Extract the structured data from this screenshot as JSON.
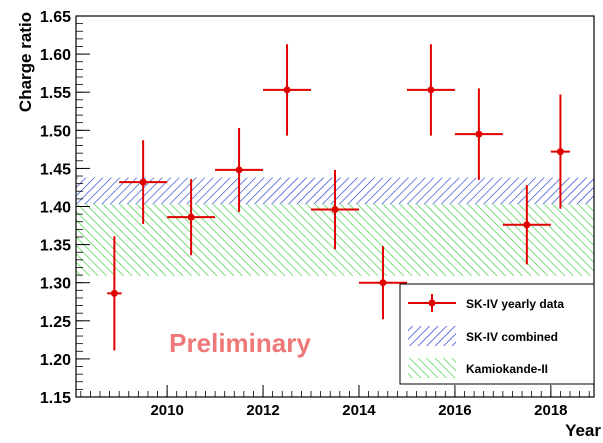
{
  "chart_data": {
    "type": "scatter",
    "title": "",
    "xlabel": "Year",
    "ylabel": "Charge ratio",
    "xlim": [
      2008.1,
      2018.9
    ],
    "ylim": [
      1.15,
      1.65
    ],
    "x_ticks": [
      2010,
      2012,
      2014,
      2016,
      2018
    ],
    "x_tick_labels": [
      "2010",
      "2012",
      "2014",
      "2016",
      "2018"
    ],
    "y_ticks": [
      1.15,
      1.2,
      1.25,
      1.3,
      1.35,
      1.4,
      1.45,
      1.5,
      1.55,
      1.6,
      1.65
    ],
    "y_tick_labels": [
      "1.15",
      "1.20",
      "1.25",
      "1.30",
      "1.35",
      "1.40",
      "1.45",
      "1.50",
      "1.55",
      "1.60",
      "1.65"
    ],
    "grid": false,
    "legend_position": "bottom-right",
    "annotation": "Preliminary",
    "series": [
      {
        "name": "SK-IV yearly data",
        "kind": "points_with_errors",
        "color": "#e00000",
        "points": [
          {
            "x": 2008.9,
            "y": 1.286,
            "xerr": 0.15,
            "yerr": 0.075
          },
          {
            "x": 2009.5,
            "y": 1.432,
            "xerr": 0.5,
            "yerr": 0.055
          },
          {
            "x": 2010.5,
            "y": 1.386,
            "xerr": 0.5,
            "yerr": 0.05
          },
          {
            "x": 2011.5,
            "y": 1.448,
            "xerr": 0.5,
            "yerr": 0.055
          },
          {
            "x": 2012.5,
            "y": 1.553,
            "xerr": 0.5,
            "yerr": 0.06
          },
          {
            "x": 2013.5,
            "y": 1.396,
            "xerr": 0.5,
            "yerr": 0.052
          },
          {
            "x": 2014.5,
            "y": 1.3,
            "xerr": 0.5,
            "yerr": 0.048
          },
          {
            "x": 2015.5,
            "y": 1.553,
            "xerr": 0.5,
            "yerr": 0.06
          },
          {
            "x": 2016.5,
            "y": 1.495,
            "xerr": 0.5,
            "yerr": 0.06
          },
          {
            "x": 2017.5,
            "y": 1.376,
            "xerr": 0.5,
            "yerr": 0.052
          },
          {
            "x": 2018.2,
            "y": 1.472,
            "xerr": 0.2,
            "yerr": 0.075
          }
        ]
      },
      {
        "name": "SK-IV combined",
        "kind": "band",
        "color": "#1f3fcc",
        "low": 1.403,
        "high": 1.438
      },
      {
        "name": "Kamiokande-II",
        "kind": "band",
        "color": "#33cc33",
        "low": 1.309,
        "high": 1.403
      }
    ]
  }
}
